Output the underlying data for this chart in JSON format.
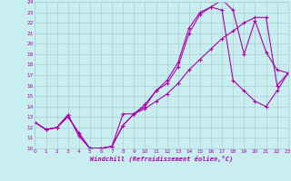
{
  "xlabel": "Windchill (Refroidissement éolien,°C)",
  "bg_color": "#c8eef0",
  "grid_color": "#aacdd6",
  "line_color": "#aa00aa",
  "xmin": 0,
  "xmax": 23,
  "ymin": 10,
  "ymax": 24,
  "line1_x": [
    0,
    1,
    2,
    3,
    4,
    5,
    6,
    7,
    8,
    9,
    10,
    11,
    12,
    13,
    14,
    15,
    16,
    17,
    18,
    19,
    20,
    21,
    22,
    23
  ],
  "line1_y": [
    12.5,
    11.8,
    12.0,
    13.2,
    11.2,
    10.0,
    10.0,
    10.2,
    12.2,
    13.3,
    14.0,
    15.5,
    16.2,
    17.8,
    21.0,
    22.8,
    23.5,
    24.2,
    23.2,
    19.0,
    22.2,
    19.2,
    17.5,
    17.2
  ],
  "line2_x": [
    0,
    1,
    2,
    3,
    4,
    5,
    6,
    7,
    8,
    9,
    10,
    11,
    12,
    13,
    14,
    15,
    16,
    17,
    18,
    19,
    20,
    21,
    22,
    23
  ],
  "line2_y": [
    12.5,
    11.8,
    12.0,
    13.2,
    11.2,
    10.0,
    10.0,
    10.2,
    12.2,
    13.3,
    14.2,
    15.5,
    16.5,
    18.2,
    21.5,
    23.0,
    23.5,
    23.2,
    16.5,
    15.5,
    14.5,
    14.0,
    15.5,
    17.2
  ],
  "line3_x": [
    0,
    1,
    2,
    3,
    4,
    5,
    6,
    7,
    8,
    9,
    10,
    11,
    12,
    13,
    14,
    15,
    16,
    17,
    18,
    19,
    20,
    21,
    22,
    23
  ],
  "line3_y": [
    12.5,
    11.8,
    12.0,
    13.0,
    11.5,
    10.0,
    10.0,
    10.2,
    13.3,
    13.3,
    13.8,
    14.5,
    15.2,
    16.2,
    17.5,
    18.5,
    19.5,
    20.5,
    21.2,
    22.0,
    22.5,
    22.5,
    16.0,
    17.2
  ]
}
